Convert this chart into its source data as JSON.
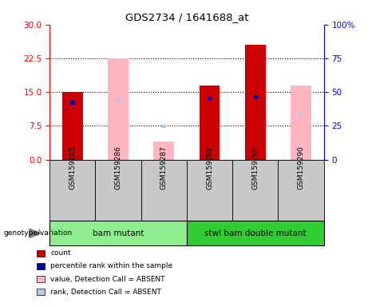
{
  "title": "GDS2734 / 1641688_at",
  "samples": [
    "GSM159285",
    "GSM159286",
    "GSM159287",
    "GSM159288",
    "GSM159289",
    "GSM159290"
  ],
  "groups": [
    {
      "label": "bam mutant",
      "indices": [
        0,
        1,
        2
      ],
      "color": "#90EE90"
    },
    {
      "label": "stwl bam double mutant",
      "indices": [
        3,
        4,
        5
      ],
      "color": "#32CD32"
    }
  ],
  "count_values": [
    15.0,
    null,
    null,
    16.5,
    25.5,
    null
  ],
  "rank_values": [
    12.2,
    null,
    null,
    13.2,
    13.5,
    null
  ],
  "absent_value": [
    null,
    22.5,
    4.0,
    null,
    null,
    16.5
  ],
  "absent_rank": [
    null,
    12.8,
    7.0,
    null,
    null,
    9.5
  ],
  "left_ylim": [
    0,
    30
  ],
  "right_ylim": [
    0,
    100
  ],
  "left_yticks": [
    0,
    7.5,
    15,
    22.5,
    30
  ],
  "right_yticks": [
    0,
    25,
    50,
    75,
    100
  ],
  "count_color": "#CC0000",
  "rank_color": "#0000AA",
  "absent_value_color": "#FFB6C1",
  "absent_rank_color": "#B8C8E0",
  "sample_bg_color": "#C8C8C8",
  "genotype_label": "genotype/variation",
  "legend_items": [
    {
      "color": "#CC0000",
      "label": "count"
    },
    {
      "color": "#0000AA",
      "label": "percentile rank within the sample"
    },
    {
      "color": "#FFB6C1",
      "label": "value, Detection Call = ABSENT"
    },
    {
      "color": "#B8C8E0",
      "label": "rank, Detection Call = ABSENT"
    }
  ]
}
